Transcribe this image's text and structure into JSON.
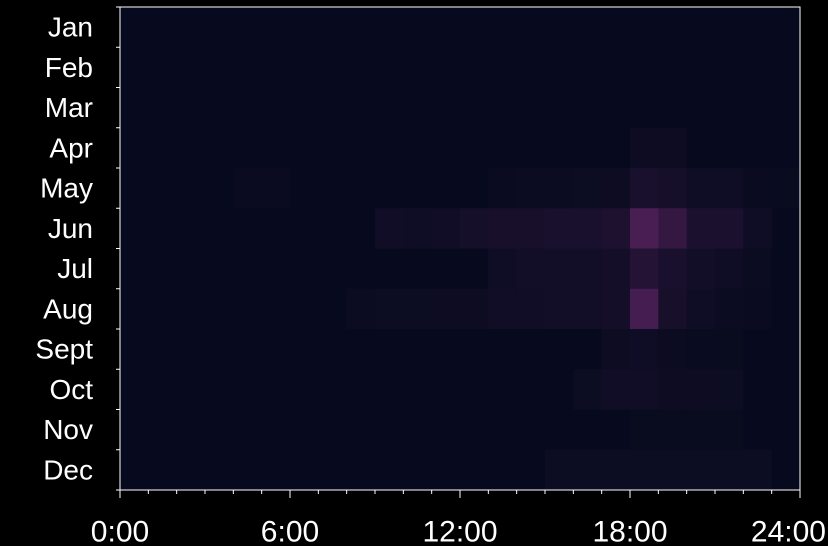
{
  "chart_data": {
    "type": "heatmap",
    "title": "",
    "xlabel": "",
    "ylabel": "",
    "x_tick_labels": [
      "0:00",
      "6:00",
      "12:00",
      "18:00",
      "24:00"
    ],
    "x_ticks": [
      0,
      6,
      12,
      18,
      24
    ],
    "xlim": [
      0,
      24
    ],
    "x_bin_hours": 1,
    "y_categories": [
      "Jan",
      "Feb",
      "Mar",
      "Apr",
      "May",
      "Jun",
      "Jul",
      "Aug",
      "Sept",
      "Oct",
      "Nov",
      "Dec"
    ],
    "colors": {
      "background": "#000000",
      "low": "#070a1e",
      "high": "#5a2360",
      "frame": "#ffffff"
    },
    "grid": false,
    "values": [
      [
        0,
        0,
        0,
        0,
        0,
        0,
        0,
        0,
        0,
        0,
        0,
        0,
        0,
        0,
        0,
        0,
        0,
        0,
        0,
        0,
        0,
        0,
        0,
        0
      ],
      [
        0,
        0,
        0,
        0,
        0,
        0,
        0,
        0,
        0,
        0,
        0,
        0,
        0,
        0,
        0,
        0,
        0,
        0,
        0,
        0,
        0,
        0,
        0,
        0
      ],
      [
        0,
        0,
        0,
        0,
        0,
        0,
        0,
        0,
        0,
        0,
        0,
        0,
        0,
        0,
        0,
        0,
        0,
        0,
        0,
        0,
        0,
        0,
        0,
        0
      ],
      [
        0,
        0,
        0,
        0,
        0,
        0,
        0,
        0,
        0,
        0,
        0,
        0,
        0,
        0,
        0,
        0,
        0,
        0,
        0.08,
        0.08,
        0,
        0,
        0,
        0
      ],
      [
        0,
        0,
        0,
        0,
        0.04,
        0.04,
        0,
        0,
        0,
        0,
        0,
        0,
        0,
        0.04,
        0.05,
        0.05,
        0.06,
        0.08,
        0.22,
        0.18,
        0.1,
        0.1,
        0.04,
        0.02
      ],
      [
        0,
        0,
        0,
        0,
        0,
        0,
        0,
        0,
        0,
        0.12,
        0.1,
        0.12,
        0.18,
        0.2,
        0.2,
        0.22,
        0.22,
        0.28,
        0.8,
        0.55,
        0.25,
        0.25,
        0.1,
        0
      ],
      [
        0,
        0,
        0,
        0,
        0,
        0,
        0,
        0,
        0,
        0,
        0,
        0,
        0,
        0.1,
        0.14,
        0.14,
        0.15,
        0.16,
        0.35,
        0.22,
        0.15,
        0.1,
        0.05,
        0
      ],
      [
        0,
        0,
        0,
        0,
        0,
        0,
        0,
        0,
        0.05,
        0.06,
        0.06,
        0.08,
        0.08,
        0.12,
        0.12,
        0.14,
        0.14,
        0.16,
        0.75,
        0.2,
        0.1,
        0.05,
        0.04,
        0
      ],
      [
        0,
        0,
        0,
        0,
        0,
        0,
        0,
        0,
        0,
        0,
        0,
        0,
        0,
        0,
        0,
        0,
        0,
        0.08,
        0.1,
        0.05,
        0.03,
        0.02,
        0,
        0
      ],
      [
        0,
        0,
        0,
        0,
        0,
        0,
        0,
        0,
        0,
        0,
        0,
        0,
        0,
        0,
        0,
        0,
        0.06,
        0.12,
        0.12,
        0.08,
        0.08,
        0.06,
        0,
        0
      ],
      [
        0,
        0,
        0,
        0,
        0,
        0,
        0,
        0,
        0,
        0,
        0,
        0,
        0,
        0,
        0,
        0,
        0,
        0,
        0.02,
        0.02,
        0.02,
        0.02,
        0,
        0
      ],
      [
        0,
        0,
        0,
        0,
        0,
        0,
        0,
        0,
        0,
        0,
        0,
        0,
        0,
        0,
        0,
        0.06,
        0.06,
        0.06,
        0.06,
        0.06,
        0.06,
        0.06,
        0.06,
        0
      ]
    ]
  }
}
